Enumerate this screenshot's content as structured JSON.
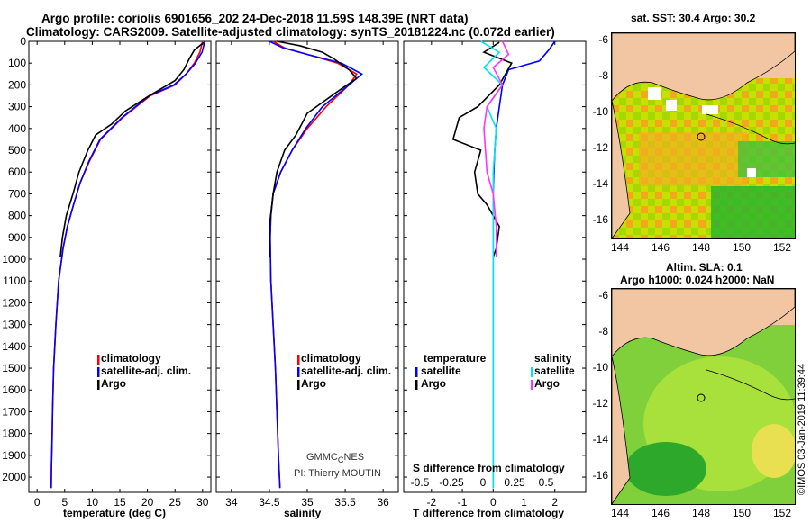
{
  "header": {
    "line1": "Argo profile: coriolis 6901656_202 24-Dec-2018 11.59S 148.39E (NRT data)",
    "line2": "Climatology: CARS2009. Satellite-adjusted climatology: synTS_20181224.nc (0.072d earlier)"
  },
  "sst_title": "sat. SST: 30.4 Argo: 30.2",
  "sla_title1": "Altim. SLA: 0.1",
  "sla_title2": "Argo h1000: 0.024 h2000: NaN",
  "credit_vertical": "©IMOS 03-Jan-2019 11:39:44",
  "credit_gmm": "GMMC",
  "credit_gmm_sub": "C",
  "credit_gmm_end": "NES",
  "credit_pi": "PI: Thierry MOUTIN",
  "colors": {
    "clim": "#ff0000",
    "sat": "#0000ff",
    "argo": "#000000",
    "sal_sat": "#00e5ee",
    "sal_argo": "#ff33ff"
  },
  "chart_data": [
    {
      "type": "line",
      "id": "temperature",
      "xlabel": "temperature (deg C)",
      "xlim": [
        -1.5,
        31.5
      ],
      "xticks": [
        0,
        5,
        10,
        15,
        20,
        25,
        30
      ],
      "ylim": [
        0,
        2070
      ],
      "yticks": [
        0,
        100,
        200,
        300,
        400,
        500,
        600,
        700,
        800,
        900,
        1000,
        1100,
        1200,
        1300,
        1400,
        1500,
        1600,
        1700,
        1800,
        1900,
        2000
      ],
      "legend": [
        "climatology",
        "satellite-adj. clim.",
        "Argo"
      ],
      "series": [
        {
          "name": "climatology",
          "color": "clim",
          "x": [
            30.0,
            29.5,
            28.5,
            27.0,
            25.0,
            20.5,
            15.5,
            11.5,
            9.5,
            7.8,
            6.6,
            5.5,
            4.7,
            3.9,
            3.4,
            3.0,
            2.8,
            2.7,
            2.6,
            2.55
          ],
          "y": [
            0,
            50,
            100,
            150,
            200,
            250,
            350,
            450,
            550,
            650,
            750,
            850,
            950,
            1100,
            1300,
            1500,
            1700,
            1850,
            1950,
            2050
          ]
        },
        {
          "name": "satellite-adj. clim.",
          "color": "sat",
          "x": [
            30.4,
            29.9,
            28.7,
            27.0,
            24.8,
            20.3,
            15.4,
            11.4,
            9.4,
            7.8,
            6.6,
            5.5,
            4.7,
            3.9,
            3.4,
            3.0,
            2.8,
            2.7,
            2.6,
            2.55
          ],
          "y": [
            0,
            50,
            100,
            150,
            200,
            250,
            350,
            450,
            550,
            650,
            750,
            850,
            950,
            1100,
            1300,
            1500,
            1700,
            1850,
            1950,
            2050
          ]
        },
        {
          "name": "Argo",
          "color": "argo",
          "x": [
            30.2,
            28.5,
            27.6,
            26.6,
            25.0,
            20.3,
            16.0,
            13.5,
            10.6,
            9.2,
            7.6,
            6.5,
            5.3,
            4.6,
            4.2
          ],
          "y": [
            5,
            40,
            80,
            130,
            180,
            250,
            320,
            380,
            430,
            500,
            600,
            700,
            800,
            900,
            990
          ]
        }
      ]
    },
    {
      "type": "line",
      "id": "salinity",
      "xlabel": "salinity",
      "xlim": [
        33.8,
        36.2
      ],
      "xticks": [
        34,
        34.5,
        35,
        35.5,
        36
      ],
      "ylim": [
        0,
        2070
      ],
      "legend": [
        "climatology",
        "satellite-adj. clim.",
        "Argo"
      ],
      "series": [
        {
          "name": "climatology",
          "color": "clim",
          "x": [
            34.55,
            34.7,
            35.0,
            35.4,
            35.65,
            35.55,
            35.25,
            35.0,
            34.8,
            34.65,
            34.55,
            34.52,
            34.51,
            34.52,
            34.55,
            34.58,
            34.6,
            34.62,
            34.64
          ],
          "y": [
            0,
            30,
            60,
            100,
            150,
            200,
            300,
            400,
            500,
            600,
            700,
            800,
            900,
            1100,
            1300,
            1500,
            1700,
            1900,
            2050
          ]
        },
        {
          "name": "satellite-adj. clim.",
          "color": "sat",
          "x": [
            34.5,
            34.68,
            35.0,
            35.45,
            35.72,
            35.55,
            35.2,
            34.98,
            34.8,
            34.65,
            34.55,
            34.52,
            34.51,
            34.52,
            34.55,
            34.58,
            34.6,
            34.62,
            34.64
          ],
          "y": [
            0,
            30,
            60,
            100,
            150,
            200,
            300,
            400,
            500,
            600,
            700,
            800,
            900,
            1100,
            1300,
            1500,
            1700,
            1900,
            2050
          ]
        },
        {
          "name": "Argo",
          "color": "argo",
          "x": [
            34.6,
            34.9,
            35.2,
            35.35,
            35.55,
            35.65,
            35.4,
            35.0,
            34.85,
            34.7,
            34.6,
            34.55,
            34.5,
            34.5
          ],
          "y": [
            0,
            20,
            50,
            80,
            130,
            170,
            230,
            330,
            430,
            500,
            600,
            700,
            850,
            990
          ]
        }
      ]
    },
    {
      "type": "line",
      "id": "difference",
      "xlabel": "T difference from climatology",
      "xlabel2": "S difference from climatology",
      "xlim": [
        -2.9,
        3.0
      ],
      "xticks": [
        -2,
        -1,
        0,
        1,
        2
      ],
      "sticks": [
        "-0.5",
        "-0.25",
        "0",
        "0.25",
        "0.5"
      ],
      "ylim": [
        0,
        2070
      ],
      "legend_left_header": "temperature",
      "legend_right_header": "salinity",
      "legend": [
        "satellite",
        "Argo"
      ],
      "series": [
        {
          "name": "T satellite",
          "color": "sat",
          "x": [
            2.0,
            1.8,
            1.5,
            0.5,
            0.3,
            0.2,
            0.1,
            0.05,
            0.02,
            0.0,
            0.0,
            0.0,
            0.0
          ],
          "y": [
            0,
            40,
            90,
            130,
            200,
            300,
            400,
            500,
            600,
            700,
            900,
            1300,
            2050
          ]
        },
        {
          "name": "T Argo",
          "color": "argo",
          "x": [
            0.2,
            -0.3,
            0.6,
            0.2,
            -0.5,
            -1.1,
            -1.3,
            -0.4,
            -0.6,
            -0.5,
            -0.2,
            0.2,
            0.1,
            0.0
          ],
          "y": [
            5,
            50,
            100,
            200,
            300,
            350,
            450,
            500,
            600,
            700,
            750,
            850,
            950,
            990
          ]
        },
        {
          "name": "S satellite",
          "color": "sal_sat",
          "x": [
            -0.4,
            0.2,
            -0.3,
            0.3,
            -0.2,
            0.1,
            0.0,
            0.0,
            0.0,
            0.0
          ],
          "y": [
            0,
            50,
            120,
            200,
            300,
            400,
            600,
            800,
            1200,
            2050
          ]
        },
        {
          "name": "S Argo",
          "color": "sal_argo",
          "x": [
            0.3,
            0.5,
            0.0,
            0.3,
            -0.2,
            -0.3,
            -0.2,
            0.0,
            0.1,
            0.1
          ],
          "y": [
            0,
            60,
            120,
            200,
            300,
            400,
            600,
            700,
            850,
            990
          ]
        }
      ]
    },
    {
      "type": "heatmap",
      "id": "sst_map",
      "xticks": [
        "144",
        "146",
        "148",
        "150",
        "152"
      ],
      "yticks": [
        "-6",
        "-8",
        "-10",
        "-12",
        "-14",
        "-16"
      ],
      "marker": {
        "lon": 148.39,
        "lat": -11.59
      }
    },
    {
      "type": "heatmap",
      "id": "sla_map",
      "xticks": [
        "144",
        "146",
        "148",
        "150",
        "152"
      ],
      "yticks": [
        "-6",
        "-8",
        "-10",
        "-12",
        "-14",
        "-16"
      ],
      "marker": {
        "lon": 148.39,
        "lat": -11.59
      }
    }
  ]
}
